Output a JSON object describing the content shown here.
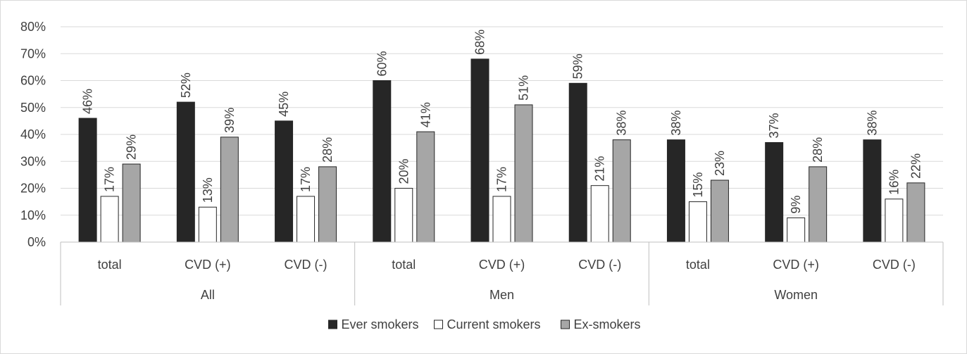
{
  "chart_data": {
    "type": "bar",
    "ylim": [
      0,
      80
    ],
    "y_ticks": [
      "0%",
      "10%",
      "20%",
      "30%",
      "40%",
      "50%",
      "60%",
      "70%",
      "80%"
    ],
    "y_tick_values": [
      0,
      10,
      20,
      30,
      40,
      50,
      60,
      70,
      80
    ],
    "grid": true,
    "legend_position": "bottom",
    "groups": [
      {
        "name": "All",
        "categories": [
          "total",
          "CVD (+)",
          "CVD (-)"
        ]
      },
      {
        "name": "Men",
        "categories": [
          "total",
          "CVD (+)",
          "CVD (-)"
        ]
      },
      {
        "name": "Women",
        "categories": [
          "total",
          "CVD (+)",
          "CVD (-)"
        ]
      }
    ],
    "series": [
      {
        "name": "Ever smokers",
        "color": "#262626",
        "values": [
          46,
          52,
          45,
          60,
          68,
          59,
          38,
          37,
          38
        ],
        "labels": [
          "46%",
          "52%",
          "45%",
          "60%",
          "68%",
          "59%",
          "38%",
          "37%",
          "38%"
        ]
      },
      {
        "name": "Current smokers",
        "color": "#ffffff",
        "values": [
          17,
          13,
          17,
          20,
          17,
          21,
          15,
          9,
          16
        ],
        "labels": [
          "17%",
          "13%",
          "17%",
          "20%",
          "17%",
          "21%",
          "15%",
          "9%",
          "16%"
        ]
      },
      {
        "name": "Ex-smokers",
        "color": "#a6a6a6",
        "values": [
          29,
          39,
          28,
          41,
          51,
          38,
          23,
          28,
          22
        ],
        "labels": [
          "29%",
          "39%",
          "28%",
          "41%",
          "51%",
          "38%",
          "23%",
          "28%",
          "22%"
        ]
      }
    ]
  }
}
